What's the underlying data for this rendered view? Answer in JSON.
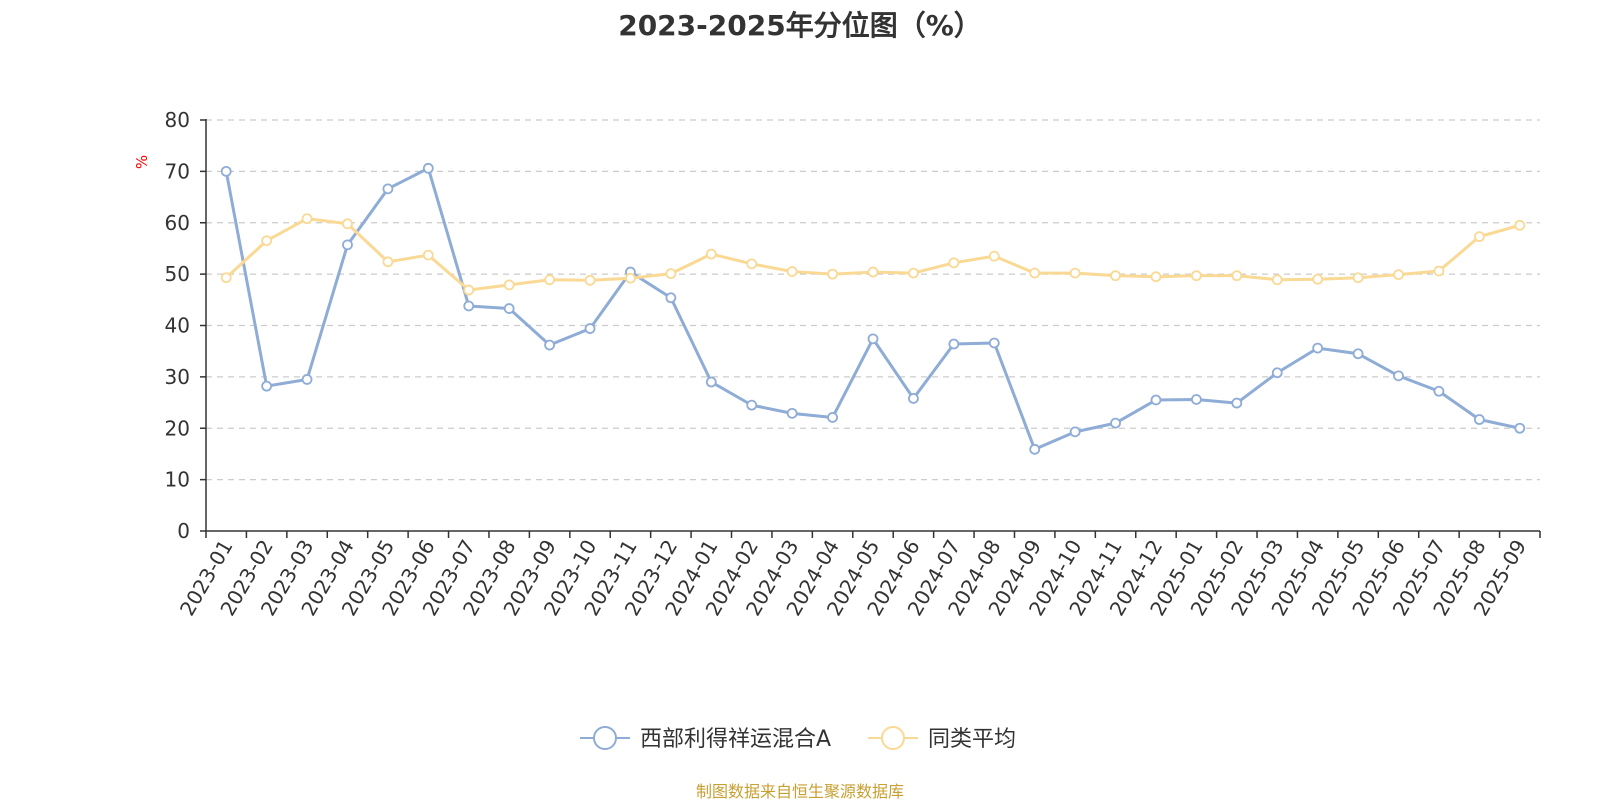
{
  "chart_data": {
    "type": "line",
    "title": "2023-2025年分位图（%）",
    "ylabel": "%",
    "xlabel": "",
    "ylim": [
      0,
      80
    ],
    "yticks": [
      0,
      10,
      20,
      30,
      40,
      50,
      60,
      70,
      80
    ],
    "grid": true,
    "legend_position": "bottom",
    "categories": [
      "2023-01",
      "2023-02",
      "2023-03",
      "2023-04",
      "2023-05",
      "2023-06",
      "2023-07",
      "2023-08",
      "2023-09",
      "2023-10",
      "2023-11",
      "2023-12",
      "2024-01",
      "2024-02",
      "2024-03",
      "2024-04",
      "2024-05",
      "2024-06",
      "2024-07",
      "2024-08",
      "2024-09",
      "2024-10",
      "2024-11",
      "2024-12",
      "2025-01",
      "2025-02",
      "2025-03",
      "2025-04",
      "2025-05",
      "2025-06",
      "2025-07",
      "2025-08",
      "2025-09"
    ],
    "series": [
      {
        "name": "西部利得祥运混合A",
        "color": "#8eacd6",
        "values": [
          70,
          28.2,
          29.5,
          55.7,
          66.6,
          70.6,
          43.8,
          43.3,
          36.2,
          39.4,
          50.4,
          45.4,
          29,
          24.5,
          22.9,
          22.1,
          37.4,
          25.8,
          36.4,
          36.6,
          15.9,
          19.3,
          21,
          25.5,
          25.6,
          24.9,
          30.8,
          35.6,
          34.5,
          30.2,
          27.2,
          21.7,
          20
        ]
      },
      {
        "name": "同类平均",
        "color": "#f9d994",
        "values": [
          49.3,
          56.5,
          60.8,
          59.8,
          52.4,
          53.7,
          46.9,
          47.9,
          48.9,
          48.8,
          49.2,
          50.1,
          53.9,
          52,
          50.5,
          50,
          50.4,
          50.2,
          52.2,
          53.5,
          50.2,
          50.2,
          49.7,
          49.5,
          49.7,
          49.7,
          48.9,
          49,
          49.3,
          49.9,
          50.6,
          57.3,
          59.5
        ]
      }
    ]
  },
  "source_note": "制图数据来自恒生聚源数据库"
}
